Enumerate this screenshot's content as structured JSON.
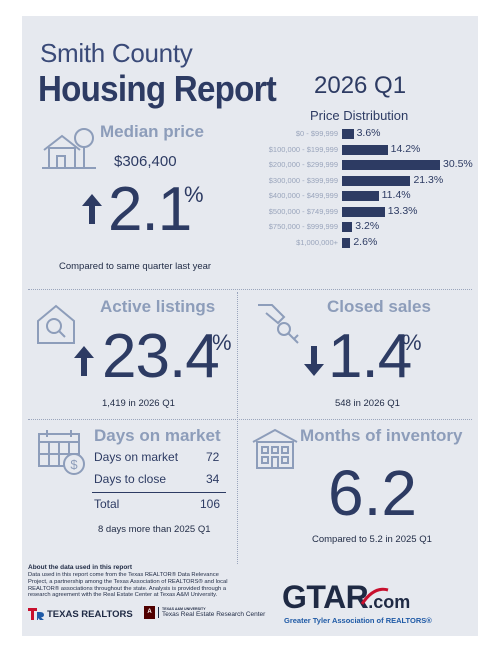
{
  "header": {
    "county": "Smith County",
    "report": "Housing Report",
    "quarter": "2026 Q1"
  },
  "price_distribution": {
    "title": "Price Distribution",
    "rows": [
      {
        "label": "$0 - $99,999",
        "value": "3.6%",
        "pct": 3.6
      },
      {
        "label": "$100,000 - $199,999",
        "value": "14.2%",
        "pct": 14.2
      },
      {
        "label": "$200,000 - $299,999",
        "value": "30.5%",
        "pct": 30.5
      },
      {
        "label": "$300,000 - $399,999",
        "value": "21.3%",
        "pct": 21.3
      },
      {
        "label": "$400,000 - $499,999",
        "value": "11.4%",
        "pct": 11.4
      },
      {
        "label": "$500,000 - $749,999",
        "value": "13.3%",
        "pct": 13.3
      },
      {
        "label": "$750,000 - $999,999",
        "value": "3.2%",
        "pct": 3.2
      },
      {
        "label": "$1,000,000+",
        "value": "2.6%",
        "pct": 2.6
      }
    ]
  },
  "median_price": {
    "title": "Median price",
    "amount": "$306,400",
    "change": "2.1",
    "unit": "%",
    "direction": "up",
    "caption": "Compared to same quarter last year"
  },
  "active_listings": {
    "title": "Active listings",
    "change": "23.4",
    "unit": "%",
    "direction": "up",
    "caption": "1,419 in 2026 Q1"
  },
  "closed_sales": {
    "title": "Closed sales",
    "change": "1.4",
    "unit": "%",
    "direction": "down",
    "caption": "548 in 2026 Q1"
  },
  "days_on_market": {
    "title": "Days on market",
    "rows": [
      {
        "label": "Days on market",
        "value": "72"
      },
      {
        "label": "Days to close",
        "value": "34"
      }
    ],
    "total_label": "Total",
    "total_value": "106",
    "caption": "8 days more than 2025 Q1"
  },
  "months_inventory": {
    "title": "Months of inventory",
    "value": "6.2",
    "caption": "Compared to 5.2 in 2025 Q1"
  },
  "footer": {
    "about_title": "About the data used in this report",
    "about_text": "Data used in this report come from the Texas REALTOR® Data Relevance Project, a partnership among the Texas Association of REALTORS® and local REALTOR® associations throughout the state. Analysis is provided through a research agreement with the Real Estate Center at Texas A&M University.",
    "texas_realtors": "TEXAS REALTORS",
    "tamu_small": "TEXAS A&M UNIVERSITY",
    "tamu_center": "Texas Real Estate Research Center",
    "gtar_logo": "GTAR",
    "gtar_com": ".com",
    "gtar_tagline": "Greater Tyler Association of REALTORS®"
  },
  "colors": {
    "navy": "#2d3b63",
    "muted": "#8d9dba",
    "background": "#e6e9ef",
    "red": "#c8102e",
    "blue": "#1f5aa6"
  }
}
